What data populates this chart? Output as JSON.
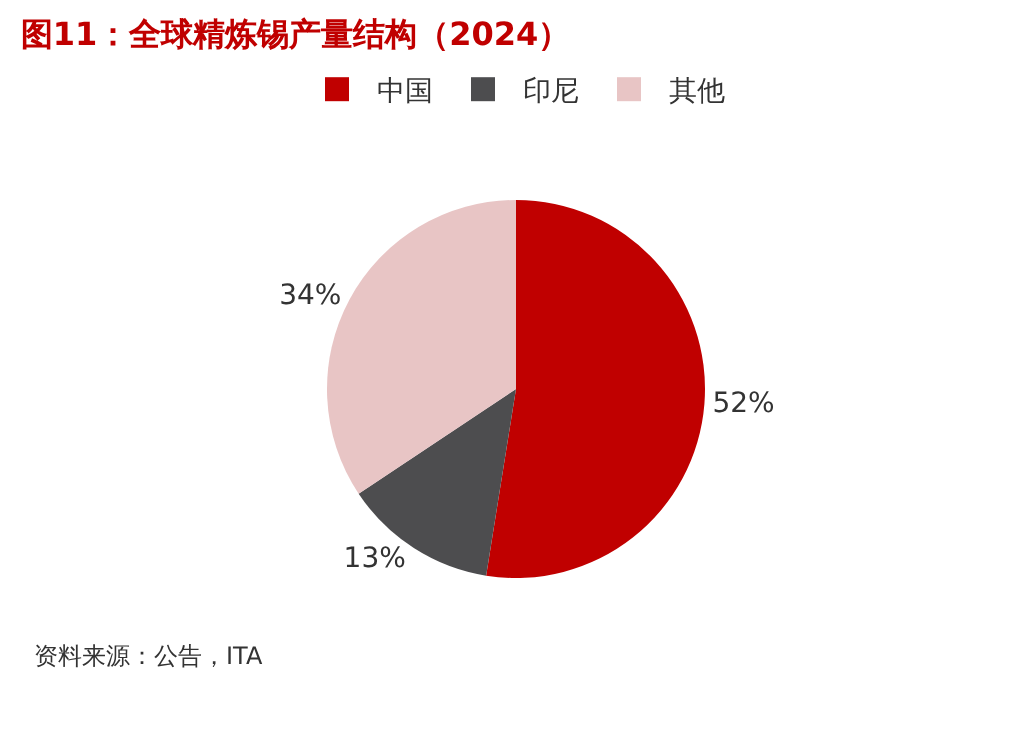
{
  "chart_data": {
    "type": "pie",
    "title": "图11：全球精炼锡产量结构（2024）",
    "categories": [
      "中国",
      "印尼",
      "其他"
    ],
    "values": [
      52,
      13,
      34
    ],
    "value_labels": [
      "52%",
      "13%",
      "34%"
    ],
    "colors": [
      "#c00000",
      "#4d4d4f",
      "#e8c5c5"
    ],
    "legend": "top",
    "annotations": [
      "资料来源：公告，ITA"
    ]
  }
}
